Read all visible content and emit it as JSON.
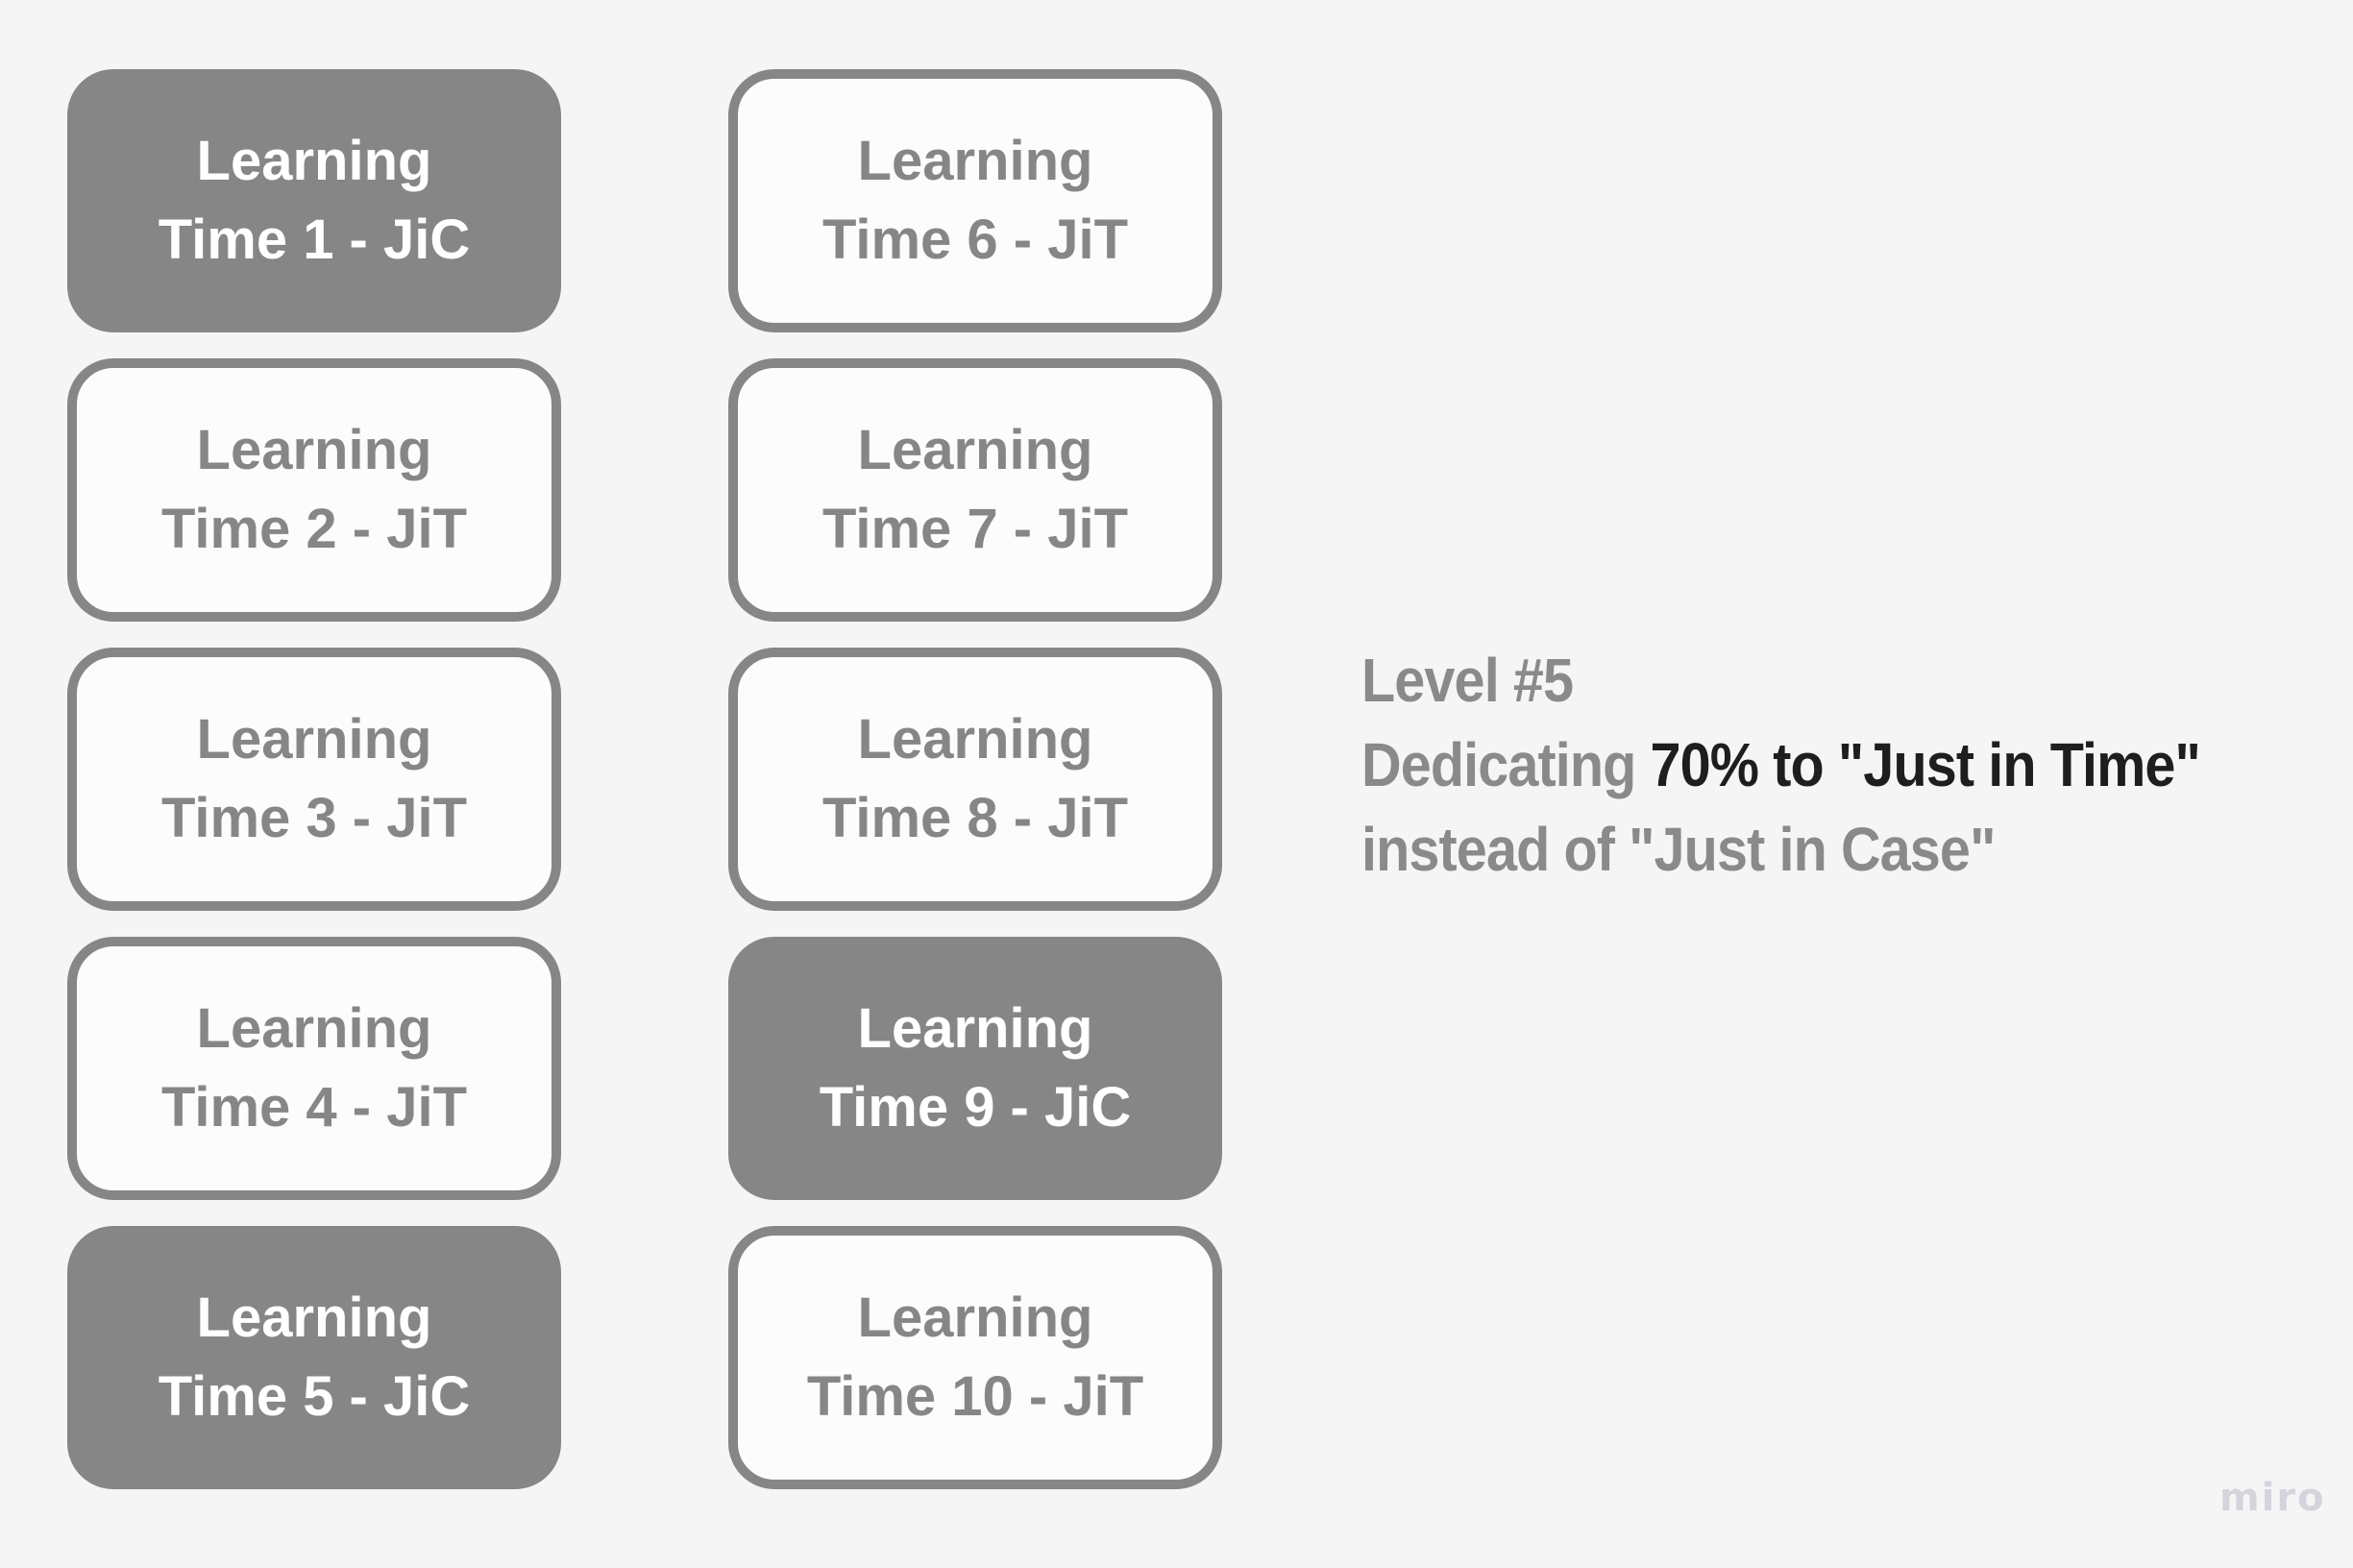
{
  "page": {
    "background_color": "#f5f5f6"
  },
  "board": {
    "columns": [
      {
        "boxes": [
          {
            "line1": "Learning",
            "line2": "Time 1 - JiC",
            "style": "filled"
          },
          {
            "line1": "Learning",
            "line2": "Time 2 - JiT",
            "style": "outline"
          },
          {
            "line1": "Learning",
            "line2": "Time 3 - JiT",
            "style": "outline"
          },
          {
            "line1": "Learning",
            "line2": "Time 4 - JiT",
            "style": "outline"
          },
          {
            "line1": "Learning",
            "line2": "Time 5 - JiC",
            "style": "filled"
          }
        ]
      },
      {
        "boxes": [
          {
            "line1": "Learning",
            "line2": "Time 6 - JiT",
            "style": "outline"
          },
          {
            "line1": "Learning",
            "line2": "Time 7 - JiT",
            "style": "outline"
          },
          {
            "line1": "Learning",
            "line2": "Time 8 - JiT",
            "style": "outline"
          },
          {
            "line1": "Learning",
            "line2": "Time 9 - JiC",
            "style": "filled"
          },
          {
            "line1": "Learning",
            "line2": "Time 10 - JiT",
            "style": "outline"
          }
        ]
      }
    ]
  },
  "annotation": {
    "line1": "Level #5",
    "line2_gray": "Dedicating ",
    "line2_black": "70% to \"Just in Time\"",
    "line3": "instead of \"Just in Case\""
  },
  "watermark": "miro",
  "colors": {
    "background": "#f5f5f6",
    "shape_gray": "#868686",
    "outline_box_fill": "#fcfcfc",
    "filled_box_text": "#ffffff",
    "annotation_gray": "#8a8a8a",
    "annotation_black": "#1e1e1e",
    "watermark_gray": "#d4d4dc"
  }
}
